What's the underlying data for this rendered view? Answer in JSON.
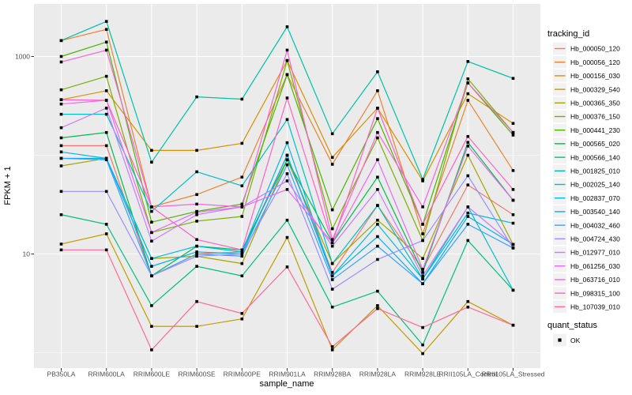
{
  "figure": {
    "background": "#FFFFFF",
    "y_axis": {
      "title": "FPKM + 1",
      "tick_labels": [
        "1000",
        "10"
      ],
      "tick_values": [
        1000,
        10
      ]
    },
    "x_axis": {
      "title": "sample_name"
    },
    "legend": {
      "title": "tracking_id",
      "quant_status_title": "quant_status",
      "quant_status_items": [
        "OK"
      ]
    }
  },
  "chart_data": {
    "type": "line",
    "title": "",
    "xlabel": "sample_name",
    "ylabel": "FPKM + 1",
    "y_scale": "log10",
    "ylim": [
      0.7,
      3400
    ],
    "y_ticks_labeled": [
      1000,
      10
    ],
    "y_minor_gridlines": [
      100,
      1
    ],
    "grid": "on",
    "legend_position": "right",
    "panel_bg": "#EBEBEB",
    "gridline_color": "#FFFFFF",
    "point_color": "#000000",
    "point_shape": "square",
    "point_legend": {
      "title": "quant_status",
      "items": [
        {
          "label": "OK",
          "shape": "square",
          "color": "#000000"
        }
      ]
    },
    "categories": [
      "PB350LA",
      "RRIM600LA",
      "RRIM600LE",
      "RRIM600SE",
      "RRIM600PE",
      "RRIM901LA",
      "RRIM928BA",
      "RRIM928LA",
      "RRIM928LE",
      "RRII105LA_Control",
      "RRII105LA_Stressed"
    ],
    "series": [
      {
        "name": "Hb_000050_120",
        "color": "#F8766D",
        "values": [
          125,
          125,
          6,
          10,
          10.5,
          100,
          6.5,
          31,
          7,
          50,
          25
        ]
      },
      {
        "name": "Hb_000056_120",
        "color": "#EA8331",
        "values": [
          1450,
          1880,
          30,
          40,
          60,
          655,
          81,
          450,
          16,
          360,
          70
        ]
      },
      {
        "name": "Hb_000156_030",
        "color": "#D89000",
        "values": [
          365,
          450,
          112,
          112,
          132,
          910,
          95,
          300,
          55,
          420,
          210
        ]
      },
      {
        "name": "Hb_000329_540",
        "color": "#C09B00",
        "values": [
          12.6,
          16,
          1.85,
          1.85,
          2.2,
          14.7,
          1.07,
          3,
          0.98,
          3.3,
          1.9
        ]
      },
      {
        "name": "Hb_000365_350",
        "color": "#A3A500",
        "values": [
          78,
          93,
          9,
          9.5,
          8,
          90,
          8,
          22,
          9,
          100,
          12.5
        ]
      },
      {
        "name": "Hb_000376_150",
        "color": "#7CAE00",
        "values": [
          460,
          630,
          16.5,
          21.5,
          24,
          910,
          18,
          150,
          13.7,
          594,
          170
        ]
      },
      {
        "name": "Hb_000441_230",
        "color": "#49B500",
        "values": [
          1000,
          1400,
          21,
          27,
          32,
          655,
          28,
          235,
          20,
          540,
          160
        ]
      },
      {
        "name": "Hb_000565_020",
        "color": "#00BB4E",
        "values": [
          150,
          170,
          6,
          12,
          11,
          90,
          13,
          60,
          6.5,
          135,
          35
        ]
      },
      {
        "name": "Hb_000566_140",
        "color": "#00BF7D",
        "values": [
          25,
          20,
          3,
          7.5,
          6,
          22,
          2.9,
          4.2,
          1.2,
          13.7,
          4.3
        ]
      },
      {
        "name": "Hb_001825_010",
        "color": "#00C1A3",
        "values": [
          1450,
          2265,
          85,
          390,
          370,
          2000,
          165,
          700,
          57,
          890,
          600
        ]
      },
      {
        "name": "Hb_002025_140",
        "color": "#00BFC4",
        "values": [
          260,
          260,
          27,
          68,
          49,
          230,
          8,
          31,
          5.6,
          30,
          4.3
        ]
      },
      {
        "name": "Hb_002837_070",
        "color": "#00BAE0",
        "values": [
          108,
          93,
          9,
          12,
          10.5,
          134,
          6,
          20,
          5.6,
          26,
          20.5
        ]
      },
      {
        "name": "Hb_003540_140",
        "color": "#00B0F6",
        "values": [
          93,
          93,
          7.5,
          10.5,
          10,
          100,
          6,
          15,
          5,
          24,
          12.5
        ]
      },
      {
        "name": "Hb_004032_460",
        "color": "#35A2FF",
        "values": [
          93,
          90,
          6,
          10,
          9.5,
          80,
          5.5,
          12,
          5,
          20,
          11.5
        ]
      },
      {
        "name": "Hb_004724_430",
        "color": "#9590FF",
        "values": [
          43,
          43,
          6,
          9.5,
          10,
          65,
          4.4,
          8.8,
          13.7,
          62,
          11.5
        ]
      },
      {
        "name": "Hb_012977_010",
        "color": "#C77CFF",
        "values": [
          190,
          300,
          13.5,
          25,
          30,
          55,
          12,
          45,
          6,
          30,
          12.5
        ]
      },
      {
        "name": "Hb_061256_030",
        "color": "#E76BF3",
        "values": [
          330,
          360,
          16.5,
          26.5,
          30,
          45,
          13,
          90,
          7,
          124,
          35
        ]
      },
      {
        "name": "Hb_063716_010",
        "color": "#FA62DB",
        "values": [
          880,
          1160,
          30,
          32,
          30,
          1160,
          14,
          170,
          30,
          540,
          170
        ]
      },
      {
        "name": "Hb_098315_100",
        "color": "#FF61C7",
        "values": [
          365,
          360,
          30,
          14,
          11,
          380,
          13,
          300,
          20,
          155,
          45
        ]
      },
      {
        "name": "Hb_107039_010",
        "color": "#FF6A98",
        "values": [
          11,
          11,
          1.07,
          3.3,
          2.5,
          7.4,
          1.15,
          2.8,
          1.8,
          2.9,
          1.9
        ]
      }
    ]
  }
}
